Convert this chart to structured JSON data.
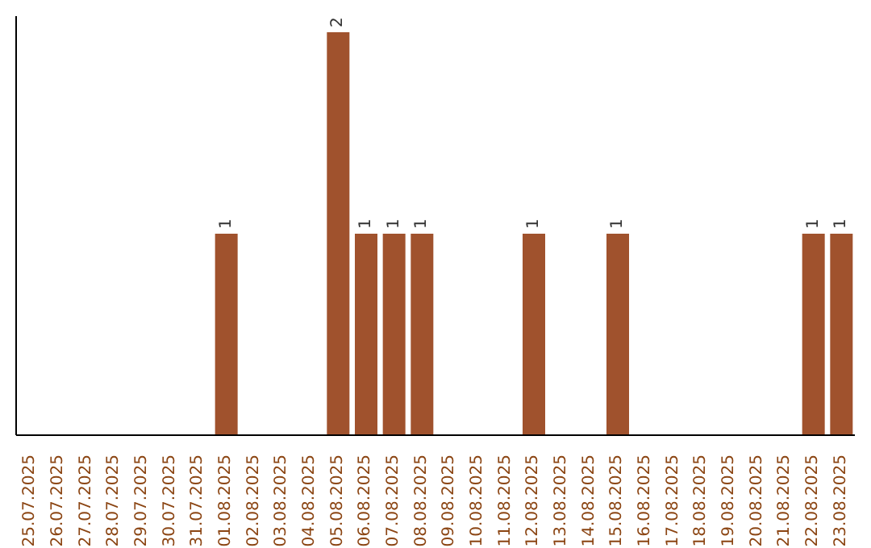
{
  "chart_data": {
    "type": "bar",
    "categories": [
      "25.07.2025",
      "26.07.2025",
      "27.07.2025",
      "28.07.2025",
      "29.07.2025",
      "30.07.2025",
      "31.07.2025",
      "01.08.2025",
      "02.08.2025",
      "03.08.2025",
      "04.08.2025",
      "05.08.2025",
      "06.08.2025",
      "07.08.2025",
      "08.08.2025",
      "09.08.2025",
      "10.08.2025",
      "11.08.2025",
      "12.08.2025",
      "13.08.2025",
      "14.08.2025",
      "15.08.2025",
      "16.08.2025",
      "17.08.2025",
      "18.08.2025",
      "19.08.2025",
      "20.08.2025",
      "21.08.2025",
      "22.08.2025",
      "23.08.2025"
    ],
    "values": [
      0,
      0,
      0,
      0,
      0,
      0,
      0,
      1,
      0,
      0,
      0,
      2,
      1,
      1,
      1,
      0,
      0,
      0,
      1,
      0,
      0,
      1,
      0,
      0,
      0,
      0,
      0,
      0,
      1,
      1
    ],
    "value_labels": [
      null,
      null,
      null,
      null,
      null,
      null,
      null,
      "1",
      null,
      null,
      null,
      "2",
      "1",
      "1",
      "1",
      null,
      null,
      null,
      "1",
      null,
      null,
      "1",
      null,
      null,
      null,
      null,
      null,
      null,
      "1",
      "1"
    ],
    "color": "#a0522d",
    "grid": false,
    "legend": false
  }
}
